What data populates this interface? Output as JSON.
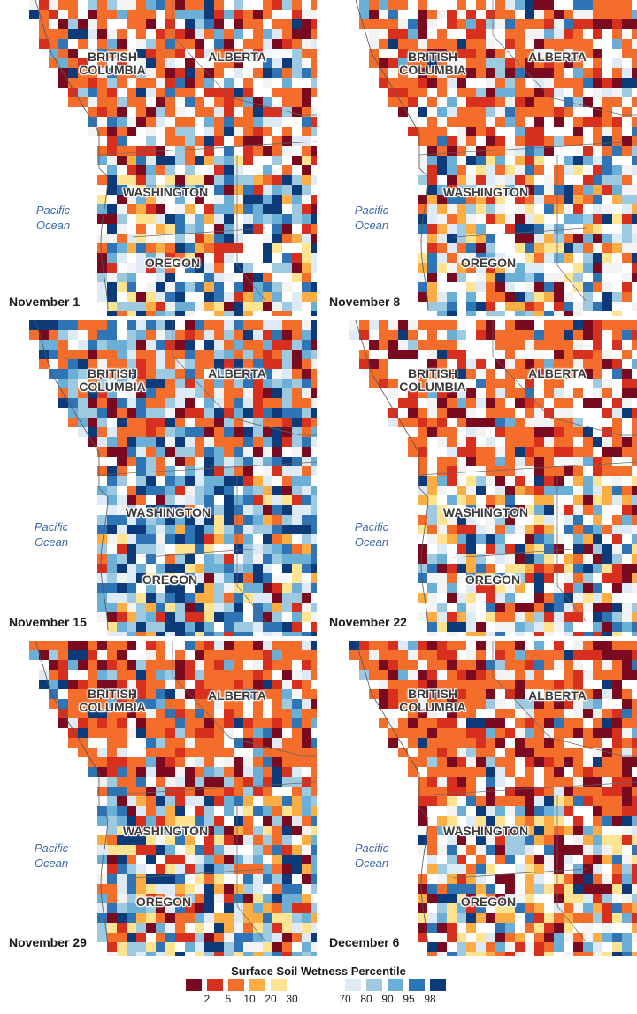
{
  "panels": [
    {
      "date": "November 1",
      "seed": 11,
      "bc": "BRITISH\nCOLUMBIA",
      "ab": "ALBERTA",
      "wa": "WASHINGTON",
      "or": "OREGON",
      "ocean": "Pacific\nOcean",
      "wet": 0.45,
      "dry": 0.35
    },
    {
      "date": "November 8",
      "seed": 23,
      "bc": "BRITISH\nCOLUMBIA",
      "ab": "ALBERTA",
      "wa": "WASHINGTON",
      "or": "OREGON",
      "ocean": "Pacific\nOcean",
      "wet": 0.35,
      "dry": 0.4
    },
    {
      "date": "November 15",
      "seed": 37,
      "bc": "BRITISH\nCOLUMBIA",
      "ab": "ALBERTA",
      "wa": "WASHINGTON",
      "or": "OREGON",
      "ocean": "Pacific\nOcean",
      "wet": 0.7,
      "dry": 0.25
    },
    {
      "date": "November 22",
      "seed": 41,
      "bc": "BRITISH\nCOLUMBIA",
      "ab": "ALBERTA",
      "wa": "WASHINGTON",
      "or": "OREGON",
      "ocean": "Pacific\nOcean",
      "wet": 0.3,
      "dry": 0.45
    },
    {
      "date": "November 29",
      "seed": 53,
      "bc": "BRITISH\nCOLUMBIA",
      "ab": "ALBERTA",
      "wa": "WASHINGTON",
      "or": "OREGON",
      "ocean": "Pacific\nOcean",
      "wet": 0.45,
      "dry": 0.45
    },
    {
      "date": "December 6",
      "seed": 67,
      "bc": "BRITISH\nCOLUMBIA",
      "ab": "ALBERTA",
      "wa": "WASHINGTON",
      "or": "OREGON",
      "ocean": "Pacific\nOcean",
      "wet": 0.3,
      "dry": 0.55
    }
  ],
  "legend": {
    "title": "Surface Soil Wetness Percentile",
    "dry_colors": [
      "#7a0a1f",
      "#d7301f",
      "#f46d2b",
      "#fcae45",
      "#fee391"
    ],
    "wet_colors": [
      "#deebf7",
      "#9ecae1",
      "#6baed6",
      "#2f74b5",
      "#0d3b7a"
    ],
    "dry_ticks": [
      "2",
      "5",
      "10",
      "20",
      "30"
    ],
    "wet_ticks": [
      "70",
      "80",
      "90",
      "95",
      "98"
    ]
  }
}
